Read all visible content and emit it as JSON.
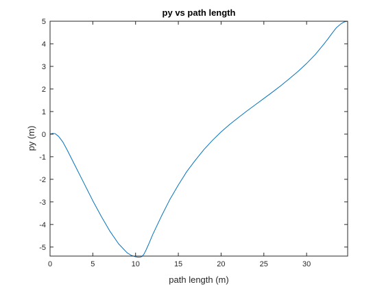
{
  "chart_data": {
    "type": "line",
    "title": "py vs path length",
    "xlabel": "path length (m)",
    "ylabel": "py (m)",
    "xlim": [
      0,
      34.8
    ],
    "ylim": [
      -5.4,
      5
    ],
    "xticks": [
      0,
      5,
      10,
      15,
      20,
      25,
      30
    ],
    "yticks": [
      -5,
      -4,
      -3,
      -2,
      -1,
      0,
      1,
      2,
      3,
      4,
      5
    ],
    "grid": false,
    "box": true,
    "series": [
      {
        "color": "#0072BD",
        "x": [
          0,
          0.3,
          0.6,
          1.0,
          1.5,
          2,
          3,
          4,
          5,
          6,
          7,
          8,
          9,
          9.5,
          10,
          10.3,
          10.6,
          10.8,
          11.0,
          11.2,
          11.5,
          12,
          13,
          14,
          15,
          16,
          17,
          18,
          19,
          20,
          21,
          22,
          23,
          24,
          25,
          26,
          27,
          28,
          29,
          30,
          31,
          32,
          32.5,
          33,
          33.5,
          34,
          34.4,
          34.8
        ],
        "y": [
          0,
          0.03,
          0.02,
          -0.1,
          -0.35,
          -0.7,
          -1.45,
          -2.2,
          -2.95,
          -3.65,
          -4.3,
          -4.85,
          -5.25,
          -5.37,
          -5.43,
          -5.45,
          -5.44,
          -5.4,
          -5.3,
          -5.15,
          -4.9,
          -4.45,
          -3.65,
          -2.9,
          -2.25,
          -1.65,
          -1.15,
          -0.68,
          -0.27,
          0.1,
          0.43,
          0.73,
          1.02,
          1.3,
          1.58,
          1.86,
          2.15,
          2.46,
          2.78,
          3.13,
          3.52,
          3.98,
          4.22,
          4.48,
          4.72,
          4.88,
          4.97,
          5.0
        ]
      }
    ]
  }
}
